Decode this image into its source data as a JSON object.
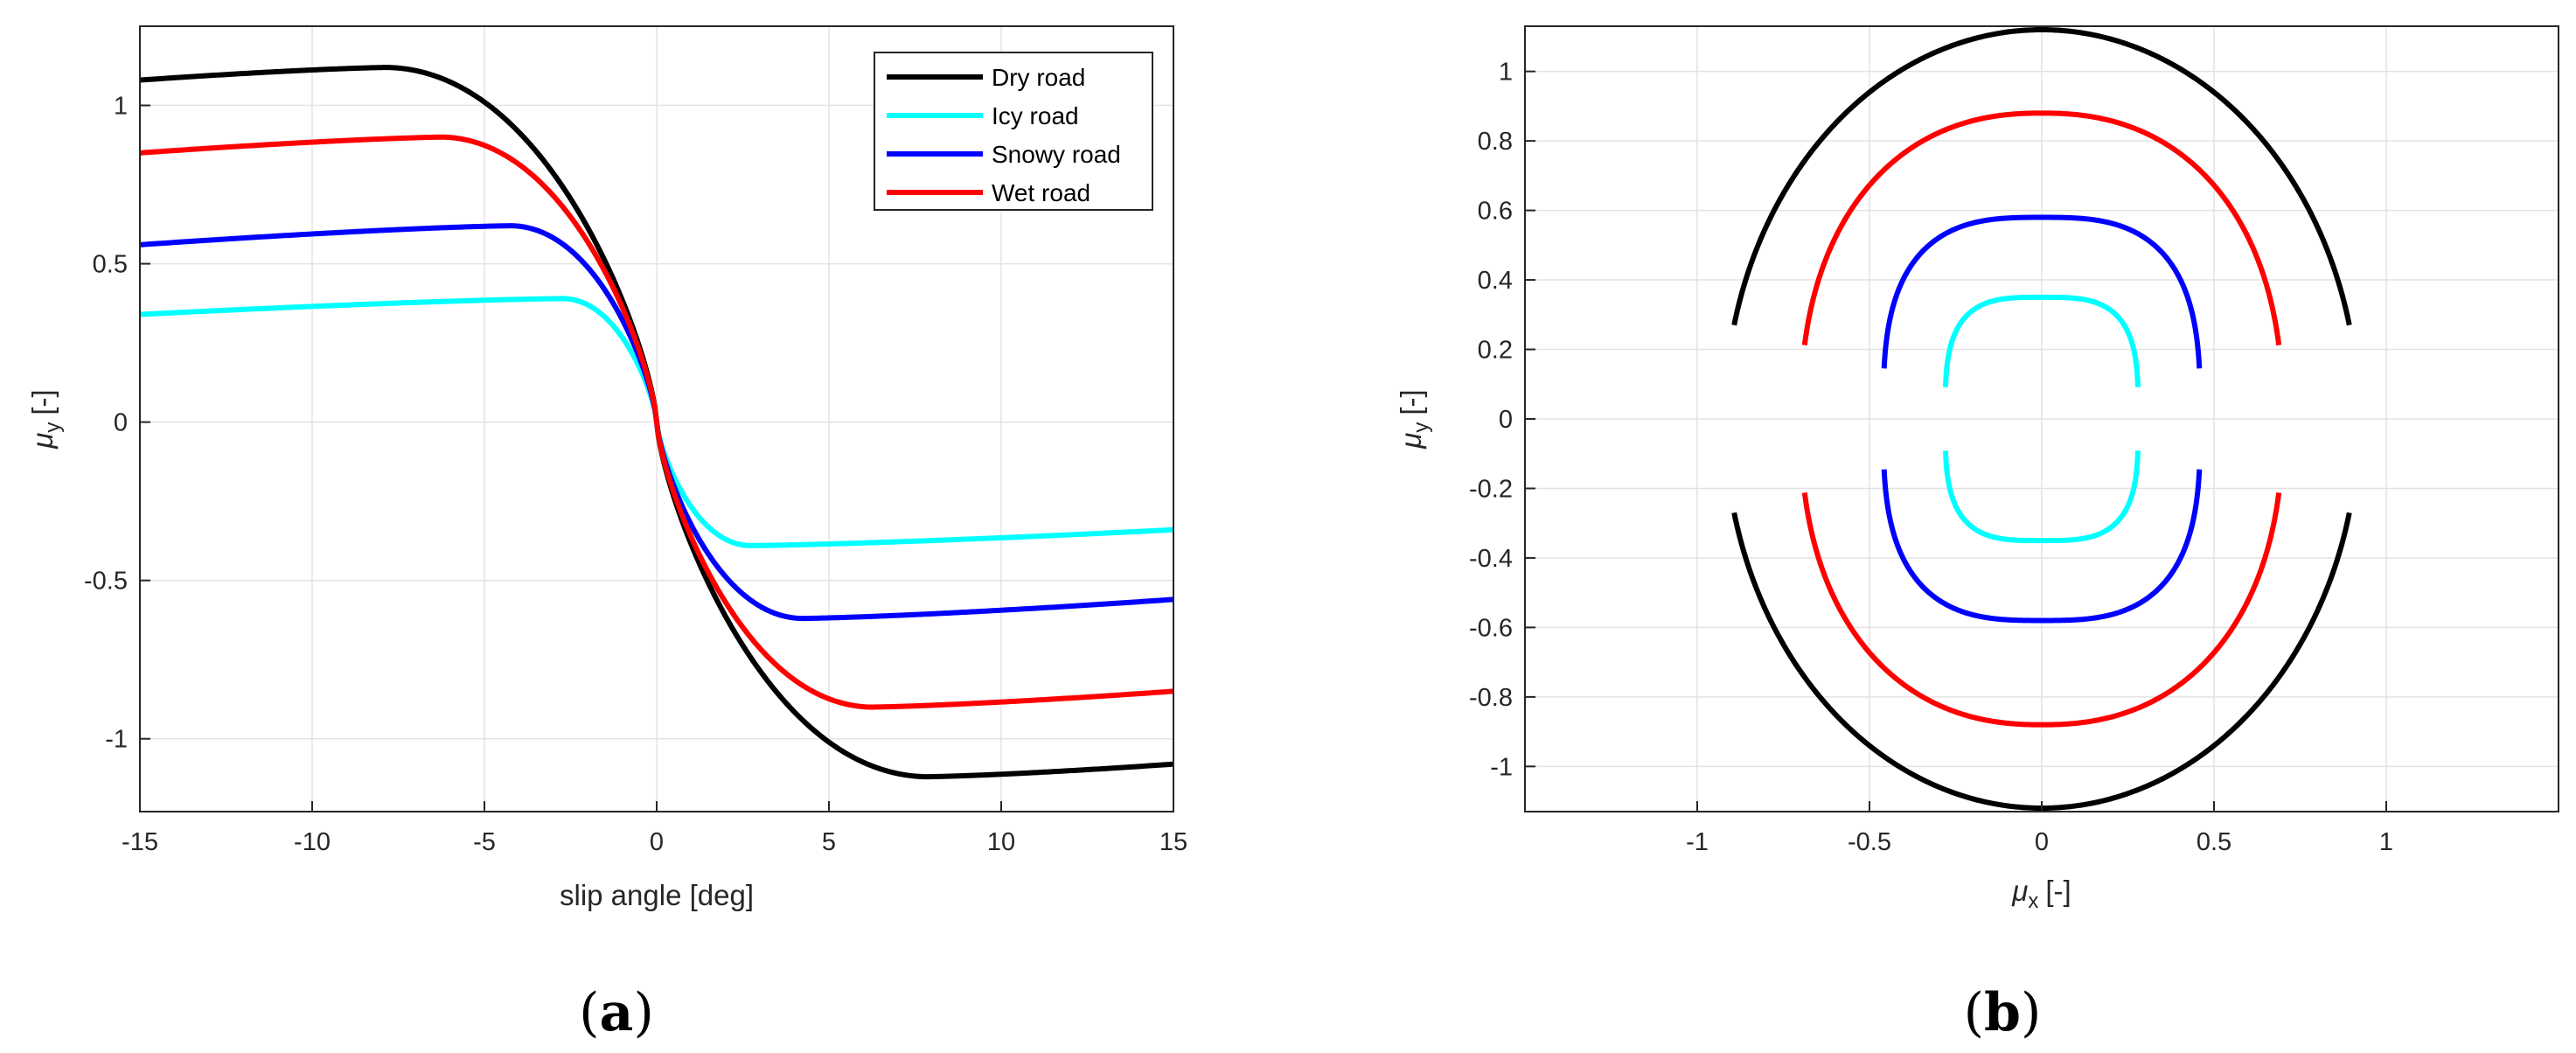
{
  "chart_data": [
    {
      "type": "line",
      "panel_label": "(a)",
      "panel_letter": "a",
      "xlabel": "slip angle [deg]",
      "ylabel_symbol": "μ",
      "ylabel_sub": "y",
      "ylabel_unit": "[-]",
      "xlim": [
        -15,
        15
      ],
      "ylim": [
        -1.23,
        1.25
      ],
      "xticks": [
        -15,
        -10,
        -5,
        0,
        5,
        10,
        15
      ],
      "yticks": [
        -1,
        -0.5,
        0,
        0.5,
        1
      ],
      "grid": true,
      "legend_position": "top-right",
      "legend": [
        "Dry road",
        "Icy road",
        "Snowy road",
        "Wet road"
      ],
      "series": [
        {
          "name": "Dry road",
          "color": "#000000",
          "mu": 1.12,
          "shapeC": 1.35,
          "shapeE": 0.96,
          "peakAt": 7.8,
          "tail": 1.08
        },
        {
          "name": "Icy road",
          "color": "#00FFFF",
          "mu": 0.39,
          "shapeC": 1.9,
          "shapeE": 0.98,
          "peakAt": 2.7,
          "tail": 0.34
        },
        {
          "name": "Snowy road",
          "color": "#0000FF",
          "mu": 0.62,
          "shapeC": 1.6,
          "shapeE": 0.97,
          "peakAt": 4.2,
          "tail": 0.56
        },
        {
          "name": "Wet road",
          "color": "#FF0000",
          "mu": 0.9,
          "shapeC": 1.45,
          "shapeE": 0.965,
          "peakAt": 6.2,
          "tail": 0.85
        }
      ]
    },
    {
      "type": "line",
      "panel_label": "(b)",
      "panel_letter": "b",
      "xlabel_symbol": "μ",
      "xlabel_sub": "x",
      "xlabel_unit": "[-]",
      "ylabel_symbol": "μ",
      "ylabel_sub": "y",
      "ylabel_unit": "[-]",
      "xlim": [
        -1.5,
        1.5
      ],
      "ylim": [
        -1.13,
        1.13
      ],
      "xticks": [
        -1,
        -0.5,
        0,
        0.5,
        1
      ],
      "yticks": [
        -1,
        -0.8,
        -0.6,
        -0.4,
        -0.2,
        0,
        0.2,
        0.4,
        0.6,
        0.8,
        1
      ],
      "grid": true,
      "series": [
        {
          "name": "Dry road",
          "color": "#000000",
          "ax": 0.92,
          "ay": 1.12,
          "gap": 0.27,
          "p": 2.0
        },
        {
          "name": "Wet road",
          "color": "#FF0000",
          "ax": 0.7,
          "ay": 0.88,
          "gap": 0.21,
          "p": 2.3
        },
        {
          "name": "Snowy road",
          "color": "#0000FF",
          "ax": 0.46,
          "ay": 0.58,
          "gap": 0.14,
          "p": 3.0
        },
        {
          "name": "Icy road",
          "color": "#00FFFF",
          "ax": 0.28,
          "ay": 0.35,
          "gap": 0.09,
          "p": 3.4
        }
      ]
    }
  ]
}
